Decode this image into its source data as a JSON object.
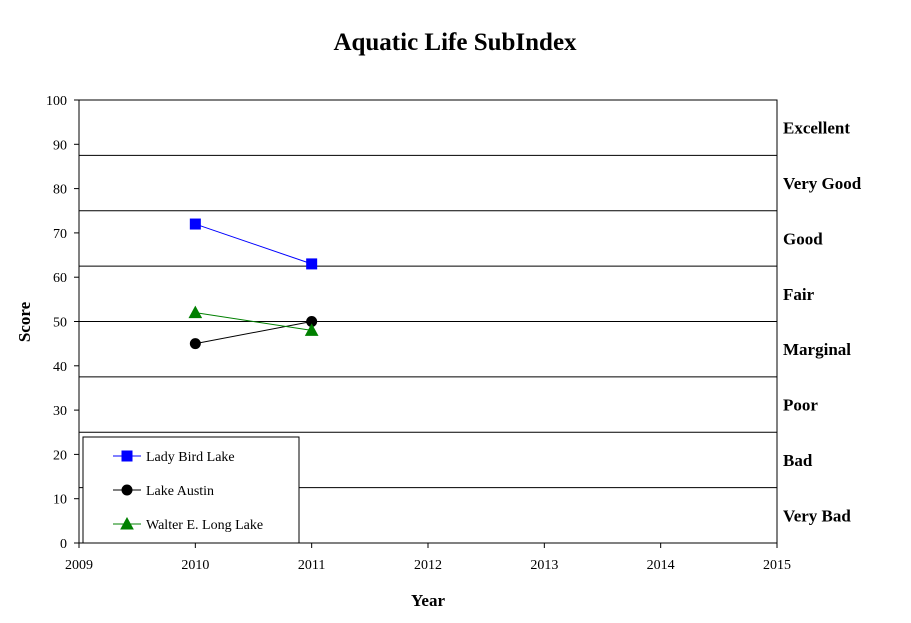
{
  "chart_data": {
    "type": "line",
    "title": "Aquatic Life SubIndex",
    "xlabel": "Year",
    "ylabel": "Score",
    "xlim": [
      2009,
      2015
    ],
    "ylim": [
      0,
      100
    ],
    "x_ticks": [
      "2009",
      "2010",
      "2011",
      "2012",
      "2013",
      "2014",
      "2015"
    ],
    "y_ticks": [
      "0",
      "10",
      "20",
      "30",
      "40",
      "50",
      "60",
      "70",
      "80",
      "90",
      "100"
    ],
    "grid": false,
    "legend_position": "bottom-left",
    "rating_bands": [
      {
        "label": "Excellent",
        "min": 87.5,
        "max": 100
      },
      {
        "label": "Very Good",
        "min": 75,
        "max": 87.5
      },
      {
        "label": "Good",
        "min": 62.5,
        "max": 75
      },
      {
        "label": "Fair",
        "min": 50,
        "max": 62.5
      },
      {
        "label": "Marginal",
        "min": 37.5,
        "max": 50
      },
      {
        "label": "Poor",
        "min": 25,
        "max": 37.5
      },
      {
        "label": "Bad",
        "min": 12.5,
        "max": 25
      },
      {
        "label": "Very Bad",
        "min": 0,
        "max": 12.5
      }
    ],
    "series": [
      {
        "name": "Lady Bird Lake",
        "color": "#0000ff",
        "marker": "square",
        "x": [
          2010,
          2011
        ],
        "values": [
          72,
          63
        ]
      },
      {
        "name": "Lake Austin",
        "color": "#000000",
        "marker": "circle",
        "x": [
          2010,
          2011
        ],
        "values": [
          45,
          50
        ]
      },
      {
        "name": "Walter E. Long Lake",
        "color": "#008000",
        "marker": "triangle",
        "x": [
          2010,
          2011
        ],
        "values": [
          52,
          48
        ]
      }
    ]
  }
}
